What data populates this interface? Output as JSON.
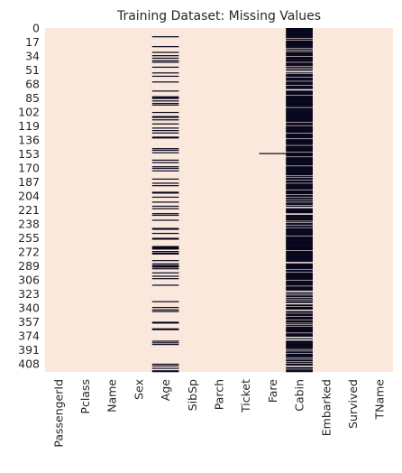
{
  "chart_data": {
    "type": "heatmap",
    "title": "Training Dataset: Missing Values",
    "xlabel": "",
    "ylabel": "",
    "columns": [
      "PassengerId",
      "Pclass",
      "Name",
      "Sex",
      "Age",
      "SibSp",
      "Parch",
      "Ticket",
      "Fare",
      "Cabin",
      "Embarked",
      "Survived",
      "TName"
    ],
    "y_tick_labels": [
      "0",
      "17",
      "34",
      "51",
      "68",
      "85",
      "102",
      "119",
      "136",
      "153",
      "170",
      "187",
      "204",
      "221",
      "238",
      "255",
      "272",
      "289",
      "306",
      "323",
      "340",
      "357",
      "374",
      "391",
      "408"
    ],
    "row_count": 418,
    "colors": {
      "present": "#fae8dc",
      "missing": "#07061d"
    },
    "missing_rows": {
      "Age": [
        10,
        22,
        29,
        33,
        36,
        39,
        41,
        47,
        54,
        58,
        65,
        76,
        83,
        84,
        85,
        88,
        91,
        93,
        102,
        107,
        108,
        111,
        116,
        121,
        124,
        127,
        132,
        133,
        146,
        148,
        151,
        160,
        163,
        168,
        170,
        173,
        183,
        188,
        191,
        199,
        200,
        205,
        211,
        216,
        219,
        225,
        227,
        233,
        243,
        244,
        249,
        255,
        256,
        265,
        266,
        267,
        268,
        271,
        273,
        274,
        282,
        286,
        288,
        289,
        290,
        292,
        297,
        301,
        304,
        312,
        332,
        339,
        342,
        344,
        357,
        358,
        365,
        366,
        380,
        382,
        384,
        408,
        410,
        413,
        416,
        417
      ],
      "Fare": [
        152
      ],
      "Cabin_present": [
        12,
        14,
        24,
        26,
        28,
        34,
        41,
        46,
        48,
        50,
        52,
        53,
        55,
        59,
        64,
        69,
        74,
        75,
        81,
        96,
        114,
        118,
        127,
        134,
        142,
        150,
        156,
        167,
        179,
        181,
        184,
        188,
        196,
        202,
        205,
        208,
        211,
        215,
        217,
        218,
        225,
        226,
        234,
        236,
        239,
        242,
        252,
        270,
        284,
        285,
        293,
        296,
        306,
        313,
        319,
        320,
        322,
        324,
        327,
        329,
        331,
        334,
        335,
        338,
        342,
        343,
        346,
        350,
        354,
        358,
        360,
        362,
        370,
        375,
        376,
        378,
        379,
        390,
        392,
        395,
        400,
        402,
        405,
        407,
        410,
        411,
        414
      ]
    }
  }
}
